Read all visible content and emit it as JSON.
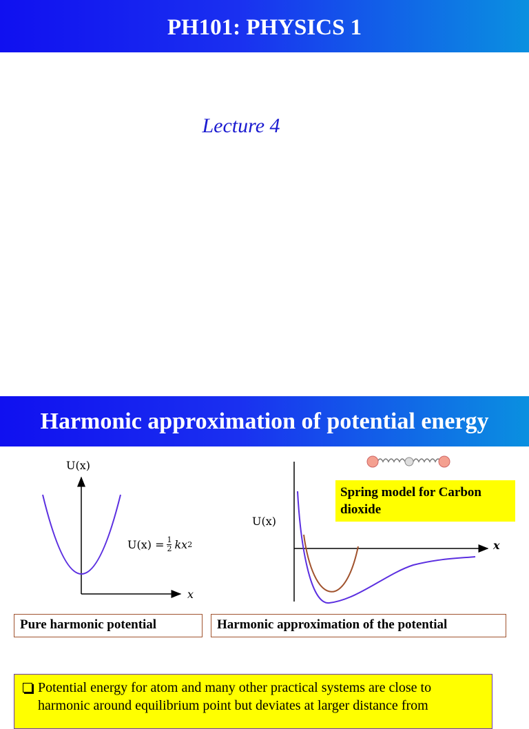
{
  "header": {
    "title": "PH101: PHYSICS 1",
    "subtitle": "Lecture 4"
  },
  "slide": {
    "title": "Harmonic approximation of potential energy",
    "left_graph": {
      "y_label": "U(x)",
      "x_label": "x",
      "equation": {
        "lhs": "U(x) =",
        "numerator": "1",
        "denominator": "2",
        "rhs": "kx",
        "exponent": "2"
      },
      "caption": "Pure harmonic potential"
    },
    "right_graph": {
      "y_label": "U(x)",
      "x_label": "x",
      "note": "Spring model for Carbon dioxide",
      "caption": "Harmonic approximation of the potential"
    },
    "bullet": "Potential energy for atom and many other practical systems are close to harmonic around equilibrium point but deviates at larger distance from"
  }
}
